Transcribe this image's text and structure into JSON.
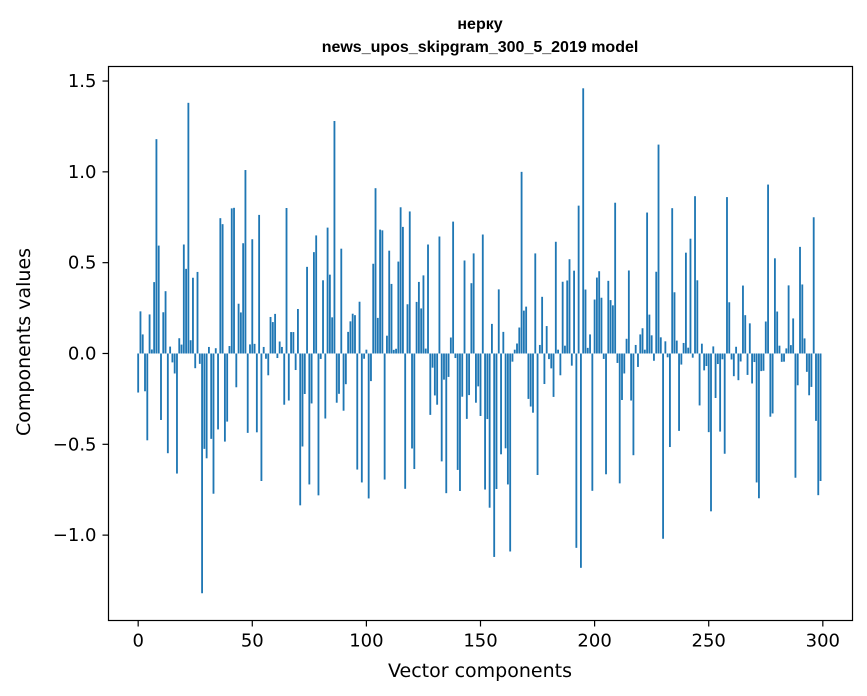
{
  "chart_data": {
    "type": "bar",
    "title": "нерку",
    "subtitle": "news_upos_skipgram_300_5_2019 model",
    "xlabel": "Vector components",
    "ylabel": "Components values",
    "xlim": [
      -13,
      313
    ],
    "ylim": [
      -1.47,
      1.58
    ],
    "xticks": [
      0,
      50,
      100,
      150,
      200,
      250,
      300
    ],
    "yticks": [
      1.5,
      1.0,
      0.5,
      0.0,
      -0.5,
      -1.0
    ],
    "ytick_labels": [
      "1.5",
      "1.0",
      "0.5",
      "0.0",
      "−0.5",
      "−1.0"
    ],
    "bar_color": "#1f77b4",
    "highlights": [
      {
        "x": 8,
        "y": 1.18
      },
      {
        "x": 22,
        "y": 1.38
      },
      {
        "x": 28,
        "y": -1.32
      },
      {
        "x": 47,
        "y": 1.01
      },
      {
        "x": 86,
        "y": 1.28
      },
      {
        "x": 104,
        "y": 0.91
      },
      {
        "x": 156,
        "y": -1.12
      },
      {
        "x": 163,
        "y": -1.09
      },
      {
        "x": 168,
        "y": 1.0
      },
      {
        "x": 192,
        "y": -1.07
      },
      {
        "x": 194,
        "y": -1.18
      },
      {
        "x": 195,
        "y": 1.46
      },
      {
        "x": 209,
        "y": 0.83
      },
      {
        "x": 228,
        "y": 1.15
      },
      {
        "x": 230,
        "y": -1.02
      },
      {
        "x": 276,
        "y": 0.93
      },
      {
        "x": 296,
        "y": 0.75
      },
      {
        "x": 298,
        "y": -0.78
      }
    ]
  }
}
